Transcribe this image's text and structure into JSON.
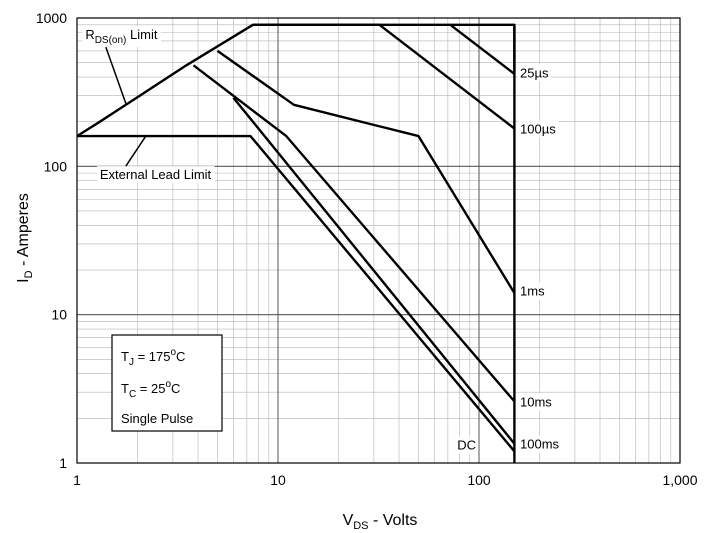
{
  "chart_data": {
    "type": "line",
    "x_scale": "log",
    "y_scale": "log",
    "xlim": [
      1,
      1000
    ],
    "ylim": [
      1,
      1000
    ],
    "grid": true,
    "x_ticks": [
      1,
      10,
      100,
      1000
    ],
    "x_tick_labels": [
      "1",
      "10",
      "100",
      "1,000"
    ],
    "y_ticks": [
      1,
      10,
      100,
      1000
    ],
    "y_tick_labels": [
      "1",
      "10",
      "100",
      "1000"
    ],
    "xlabel": {
      "main": "V",
      "sub": "DS",
      "rest": " - Volts"
    },
    "ylabel": {
      "main": "I",
      "sub": "D",
      "rest": " - Amperes"
    },
    "series": [
      {
        "name": "25µs",
        "x": [
          7.5,
          150,
          150
        ],
        "y": [
          900,
          900,
          430
        ]
      },
      {
        "name": "100µs",
        "x": [
          1,
          1.3,
          3.5,
          7.5,
          32,
          150
        ],
        "y": [
          160,
          200,
          480,
          900,
          900,
          180
        ]
      },
      {
        "name": "1ms",
        "x": [
          5,
          12,
          50,
          150
        ],
        "y": [
          600,
          260,
          160,
          14
        ]
      },
      {
        "name": "10ms",
        "x": [
          3.8,
          11,
          150
        ],
        "y": [
          480,
          160,
          2.6
        ]
      },
      {
        "name": "100ms",
        "x": [
          6,
          150
        ],
        "y": [
          290,
          1.35
        ]
      },
      {
        "name": "DC",
        "x": [
          1,
          7.3,
          150
        ],
        "y": [
          160,
          160,
          1.2
        ]
      }
    ],
    "extra_lines": [
      {
        "x": [
          72,
          150
        ],
        "y": [
          900,
          420
        ]
      },
      {
        "x": [
          150,
          150
        ],
        "y": [
          900,
          1
        ]
      }
    ],
    "line_labels": [
      {
        "text": "25µs",
        "x": 160,
        "y": 430
      },
      {
        "text": "100µs",
        "x": 160,
        "y": 180
      },
      {
        "text": "1ms",
        "x": 160,
        "y": 14.5
      },
      {
        "text": "10ms",
        "x": 160,
        "y": 2.6
      },
      {
        "text": "100ms",
        "x": 160,
        "y": 1.35
      },
      {
        "text": "DC",
        "x": 78,
        "y": 1.33
      }
    ],
    "annotations": [
      {
        "main": "R",
        "sub": "DS(on)",
        "rest": " Limit",
        "x": 1.1,
        "y": 720,
        "pointer_to": {
          "x": 1.75,
          "y": 265
        }
      },
      {
        "text": "External Lead Limit",
        "x": 1.3,
        "y": 82,
        "pointer_to": {
          "x": 2.2,
          "y": 160
        }
      }
    ],
    "conditions": [
      {
        "main": "T",
        "sub": "J",
        "rest": " = 175",
        "sup": "o",
        "tail": "C"
      },
      {
        "main": "T",
        "sub": "C",
        "rest": " = 25",
        "sup": "o",
        "tail": "C"
      },
      {
        "text": "Single Pulse"
      }
    ]
  }
}
